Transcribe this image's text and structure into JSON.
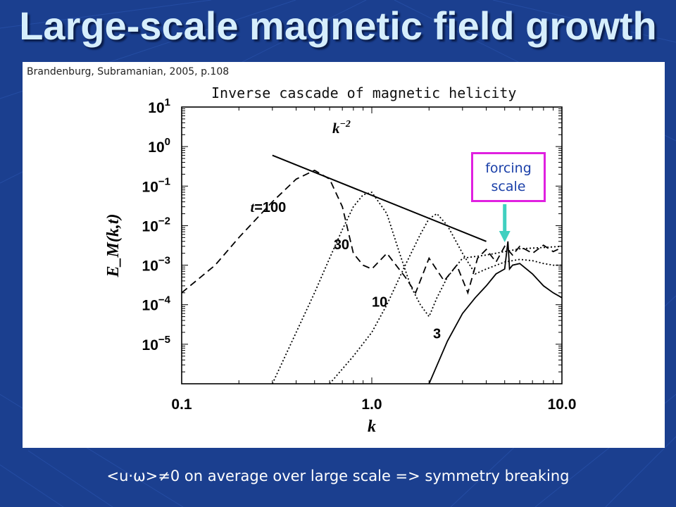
{
  "slide": {
    "title": "Large-scale magnetic field growth",
    "citation": "Brandenburg, Subramanian, 2005, p.108",
    "caption": "Inverse cascade of magnetic helicity",
    "forcing_label_line1": "forcing",
    "forcing_label_line2": "scale",
    "bottom_note": "<u·ω>≠0 on average over large scale => symmetry breaking",
    "colors": {
      "background": "#1b3f8f",
      "title": "#d6eefc",
      "forcing_box": "#e020e0",
      "arrow": "#40d0c0"
    }
  },
  "chart_data": {
    "type": "line",
    "xscale": "log",
    "yscale": "log",
    "xlim": [
      0.1,
      10.0
    ],
    "ylim": [
      1e-06,
      10
    ],
    "xlabel": "k",
    "ylabel": "E_M(k,t)",
    "x_ticks": [
      "0.1",
      "1.0",
      "10.0"
    ],
    "y_ticks": [
      "10^-5",
      "10^-4",
      "10^-3",
      "10^-2",
      "10^-1",
      "10^0",
      "10^1"
    ],
    "reference_line": {
      "label": "k^-2",
      "x": [
        0.3,
        4.0
      ],
      "y": [
        0.6,
        0.004
      ]
    },
    "forcing_scale_k": 5,
    "series": [
      {
        "name": "3",
        "style": "solid",
        "x": [
          2.0,
          2.5,
          3.0,
          3.5,
          4.0,
          4.5,
          5.0,
          5.2,
          5.3,
          5.5,
          6.0,
          7.0,
          8.0,
          9.0,
          10.0
        ],
        "y": [
          1e-06,
          1.2e-05,
          6e-05,
          0.00015,
          0.0003,
          0.0006,
          0.0008,
          0.004,
          0.0008,
          0.001,
          0.0011,
          0.0006,
          0.0003,
          0.0002,
          0.00015
        ]
      },
      {
        "name": "10",
        "style": "dotted",
        "x": [
          0.6,
          0.8,
          1.0,
          1.2,
          1.5,
          1.8,
          2.0,
          2.2,
          2.5,
          3.0,
          3.5,
          4.0,
          5.0,
          6.0,
          7.0,
          8.0,
          9.0,
          10.0
        ],
        "y": [
          1e-06,
          5e-06,
          2e-05,
          0.0001,
          0.001,
          0.006,
          0.015,
          0.02,
          0.01,
          0.002,
          0.0006,
          0.0008,
          0.0012,
          0.0014,
          0.0013,
          0.0011,
          0.001,
          0.001
        ]
      },
      {
        "name": "30",
        "style": "dotted",
        "x": [
          0.3,
          0.4,
          0.5,
          0.6,
          0.7,
          0.8,
          0.9,
          1.0,
          1.2,
          1.4,
          1.6,
          1.8,
          2.0,
          2.2,
          2.5,
          3.0,
          4.0,
          5.0,
          6.0,
          8.0,
          10.0
        ],
        "y": [
          1e-06,
          2e-05,
          0.0002,
          0.0015,
          0.008,
          0.03,
          0.06,
          0.07,
          0.02,
          0.002,
          0.0003,
          0.0001,
          5e-05,
          0.00015,
          0.0005,
          0.0015,
          0.0018,
          0.0022,
          0.0026,
          0.0028,
          0.003
        ]
      },
      {
        "name": "t=100",
        "style": "dashed",
        "x": [
          0.1,
          0.15,
          0.2,
          0.3,
          0.4,
          0.5,
          0.6,
          0.7,
          0.8,
          0.9,
          1.0,
          1.2,
          1.5,
          1.7,
          2.0,
          2.4,
          2.8,
          3.2,
          3.6,
          4.0,
          4.5,
          5.0,
          5.5,
          6.0,
          7.0,
          8.0,
          9.0,
          10.0
        ],
        "y": [
          0.0002,
          0.001,
          0.005,
          0.04,
          0.15,
          0.25,
          0.15,
          0.03,
          0.002,
          0.001,
          0.0008,
          0.002,
          0.0005,
          0.0002,
          0.0015,
          0.0004,
          0.001,
          0.0002,
          0.0015,
          0.0025,
          0.0012,
          0.003,
          0.0018,
          0.003,
          0.002,
          0.0032,
          0.0022,
          0.0028
        ]
      }
    ],
    "series_label_positions": [
      "3",
      "10",
      "30",
      "t=100"
    ]
  }
}
